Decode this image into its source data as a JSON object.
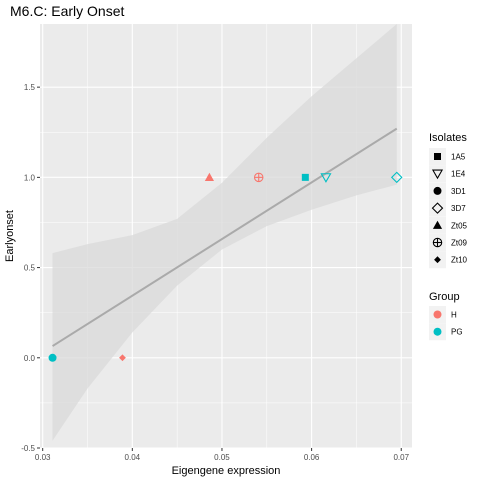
{
  "chart_data": {
    "type": "scatter",
    "title": "M6.C: Early Onset",
    "xlabel": "Eigengene expression",
    "ylabel": "Earlyonset",
    "xlim": [
      0.0297,
      0.0712
    ],
    "ylim": [
      -0.5,
      1.85
    ],
    "xticks": [
      0.03,
      0.04,
      0.05,
      0.06,
      0.07
    ],
    "xtick_labels": [
      "0.03",
      "0.04",
      "0.05",
      "0.06",
      "0.07"
    ],
    "yticks": [
      -0.5,
      0.0,
      0.5,
      1.0,
      1.5
    ],
    "ytick_labels": [
      "-0.5",
      "0.0",
      "0.5",
      "1.0",
      "1.5"
    ],
    "grid": true,
    "legend_placement": "right",
    "points": [
      {
        "x": 0.0311,
        "y": 0.0,
        "isolate": "3D1",
        "group": "PG"
      },
      {
        "x": 0.0389,
        "y": 0.0,
        "isolate": "Zt10",
        "group": "H"
      },
      {
        "x": 0.0486,
        "y": 1.0,
        "isolate": "Zt05",
        "group": "H"
      },
      {
        "x": 0.0541,
        "y": 1.0,
        "isolate": "Zt09",
        "group": "H"
      },
      {
        "x": 0.0593,
        "y": 1.0,
        "isolate": "1A5",
        "group": "PG"
      },
      {
        "x": 0.0616,
        "y": 1.0,
        "isolate": "1E4",
        "group": "PG"
      },
      {
        "x": 0.0695,
        "y": 1.0,
        "isolate": "3D7",
        "group": "PG"
      }
    ],
    "fit_line": {
      "x": [
        0.0311,
        0.0695
      ],
      "y": [
        0.065,
        1.27
      ]
    },
    "confidence_band": {
      "x": [
        0.0311,
        0.035,
        0.04,
        0.045,
        0.05,
        0.055,
        0.06,
        0.065,
        0.0695
      ],
      "lower": [
        -0.46,
        -0.17,
        0.14,
        0.4,
        0.6,
        0.73,
        0.82,
        0.9,
        0.96
      ],
      "upper": [
        0.58,
        0.63,
        0.68,
        0.77,
        0.97,
        1.22,
        1.45,
        1.66,
        1.85
      ]
    },
    "legends": {
      "isolates": {
        "title": "Isolates",
        "items": [
          {
            "label": "1A5",
            "shape": "square-filled"
          },
          {
            "label": "1E4",
            "shape": "triangle-down-open"
          },
          {
            "label": "3D1",
            "shape": "circle-filled"
          },
          {
            "label": "3D7",
            "shape": "diamond-open"
          },
          {
            "label": "Zt05",
            "shape": "triangle-up-filled"
          },
          {
            "label": "Zt09",
            "shape": "circle-plus-open"
          },
          {
            "label": "Zt10",
            "shape": "diamond-filled-small"
          }
        ]
      },
      "group": {
        "title": "Group",
        "items": [
          {
            "label": "H",
            "color": "#F8766D"
          },
          {
            "label": "PG",
            "color": "#00BFC4"
          }
        ]
      }
    },
    "colors": {
      "H": "#F8766D",
      "PG": "#00BFC4",
      "panel_bg": "#EBEBEB",
      "grid": "#FFFFFF",
      "fit_line": "#AAAAAA",
      "band": "#D9D9D9"
    }
  }
}
